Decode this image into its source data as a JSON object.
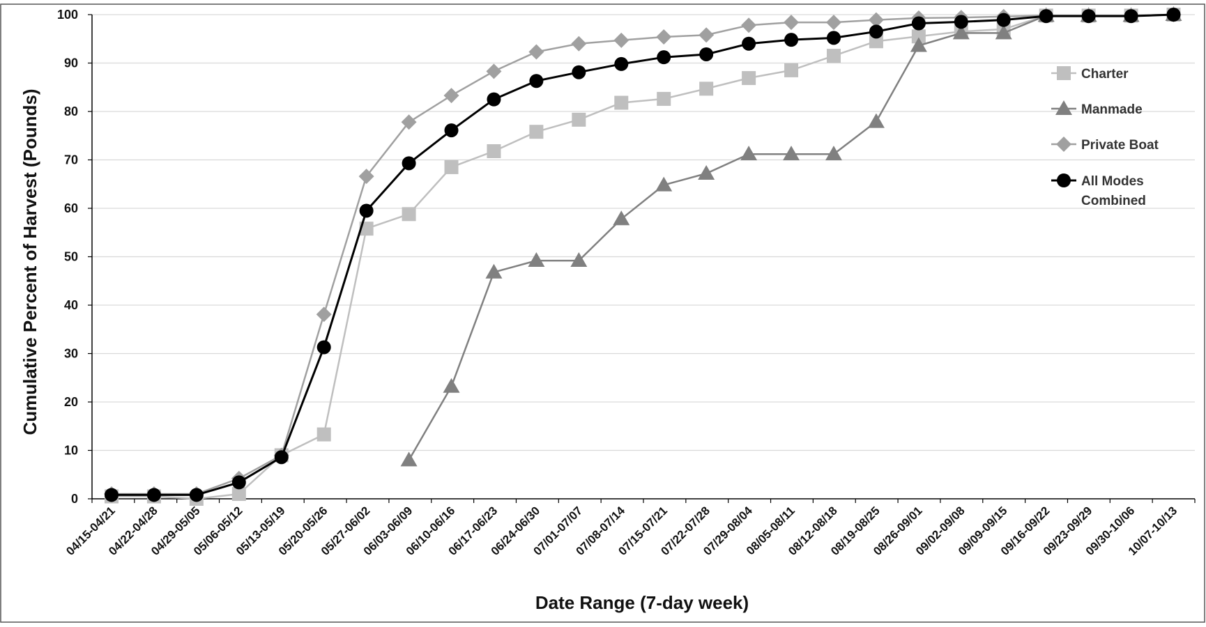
{
  "chart_data": {
    "type": "line",
    "title": "",
    "xlabel": "Date Range (7-day week)",
    "ylabel": "Cumulative Percent of Harvest (Pounds)",
    "ylim": [
      0,
      100
    ],
    "yticks": [
      0,
      10,
      20,
      30,
      40,
      50,
      60,
      70,
      80,
      90,
      100
    ],
    "grid": "horizontal",
    "legend_position": "right",
    "categories": [
      "04/15-04/21",
      "04/22-04/28",
      "04/29-05/05",
      "05/06-05/12",
      "05/13-05/19",
      "05/20-05/26",
      "05/27-06/02",
      "06/03-06/09",
      "06/10-06/16",
      "06/17-06/23",
      "06/24-06/30",
      "07/01-07/07",
      "07/08-07/14",
      "07/15-07/21",
      "07/22-07/28",
      "07/29-08/04",
      "08/05-08/11",
      "08/12-08/18",
      "08/19-08/25",
      "08/26-09/01",
      "09/02-09/08",
      "09/09-09/15",
      "09/16-09/22",
      "09/23-09/29",
      "09/30-10/06",
      "10/07-10/13"
    ],
    "series": [
      {
        "name": "Charter",
        "color": "#bfbfbf",
        "marker": "square",
        "values": [
          0.5,
          0.5,
          0,
          1,
          9,
          13.3,
          55.8,
          58.8,
          68.5,
          71.8,
          75.8,
          78.3,
          81.8,
          82.6,
          84.7,
          86.9,
          88.5,
          91.5,
          94.5,
          95.5,
          96.5,
          97,
          99.8,
          99.8,
          99.8,
          100
        ]
      },
      {
        "name": "Manmade",
        "color": "#808080",
        "marker": "triangle",
        "values": [
          null,
          null,
          null,
          null,
          null,
          null,
          null,
          8,
          23.2,
          46.8,
          49.2,
          49.2,
          57.8,
          64.8,
          67.2,
          71.2,
          71.2,
          71.2,
          77.9,
          93.6,
          96.2,
          96.2,
          99.8,
          99.8,
          99.8,
          100
        ]
      },
      {
        "name": "Private Boat",
        "color": "#a0a0a0",
        "marker": "diamond",
        "values": [
          1,
          1,
          1,
          4.2,
          9,
          38.1,
          66.6,
          77.8,
          83.3,
          88.3,
          92.3,
          94,
          94.7,
          95.4,
          95.8,
          97.8,
          98.4,
          98.4,
          98.9,
          99.3,
          99.4,
          99.6,
          99.8,
          99.8,
          99.8,
          100
        ]
      },
      {
        "name": "All Modes Combined",
        "color": "#000000",
        "marker": "circle",
        "values": [
          0.8,
          0.8,
          0.8,
          3.4,
          8.6,
          31.3,
          59.5,
          69.3,
          76.1,
          82.5,
          86.3,
          88.1,
          89.8,
          91.2,
          91.8,
          94,
          94.8,
          95.2,
          96.5,
          98.2,
          98.5,
          98.9,
          99.7,
          99.7,
          99.7,
          100
        ]
      }
    ],
    "legend_lines": {
      "Charter": [
        "Charter"
      ],
      "Manmade": [
        "Manmade"
      ],
      "Private Boat": [
        "Private Boat"
      ],
      "All Modes Combined": [
        "All Modes",
        "Combined"
      ]
    }
  }
}
